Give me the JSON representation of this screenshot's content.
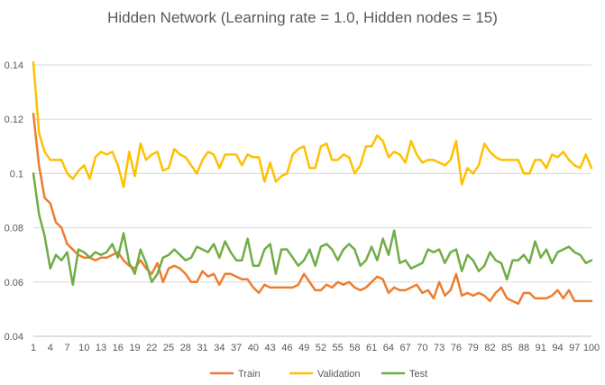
{
  "chart_data": {
    "type": "line",
    "title": "Hidden Network (Learning rate = 1.0, Hidden nodes = 15)",
    "xlabel": "",
    "ylabel": "",
    "ylim": [
      0.04,
      0.14
    ],
    "yticks": [
      "0.04",
      "0.06",
      "0.08",
      "0.1",
      "0.12",
      "0.14"
    ],
    "xtick_labels": [
      "1",
      "4",
      "7",
      "10",
      "13",
      "16",
      "19",
      "22",
      "25",
      "28",
      "31",
      "34",
      "37",
      "40",
      "43",
      "46",
      "49",
      "52",
      "55",
      "58",
      "61",
      "64",
      "67",
      "70",
      "73",
      "76",
      "79",
      "82",
      "85",
      "88",
      "91",
      "94",
      "97",
      "100"
    ],
    "x_start": 1,
    "x_end": 100,
    "grid": "horizontal",
    "legend_position": "bottom",
    "series": [
      {
        "name": "Train",
        "color": "#ED7D31",
        "values": [
          0.122,
          0.103,
          0.091,
          0.089,
          0.082,
          0.08,
          0.074,
          0.072,
          0.07,
          0.069,
          0.069,
          0.068,
          0.069,
          0.069,
          0.07,
          0.071,
          0.068,
          0.066,
          0.065,
          0.068,
          0.065,
          0.063,
          0.067,
          0.06,
          0.065,
          0.066,
          0.065,
          0.063,
          0.06,
          0.06,
          0.064,
          0.062,
          0.063,
          0.059,
          0.063,
          0.063,
          0.062,
          0.061,
          0.061,
          0.058,
          0.056,
          0.059,
          0.058,
          0.058,
          0.058,
          0.058,
          0.058,
          0.059,
          0.063,
          0.06,
          0.057,
          0.057,
          0.059,
          0.058,
          0.06,
          0.059,
          0.06,
          0.058,
          0.057,
          0.058,
          0.06,
          0.062,
          0.061,
          0.056,
          0.058,
          0.057,
          0.057,
          0.058,
          0.059,
          0.056,
          0.057,
          0.054,
          0.06,
          0.055,
          0.057,
          0.063,
          0.055,
          0.056,
          0.055,
          0.056,
          0.055,
          0.053,
          0.056,
          0.058,
          0.054,
          0.053,
          0.052,
          0.056,
          0.056,
          0.054,
          0.054,
          0.054,
          0.055,
          0.057,
          0.054,
          0.057,
          0.053,
          0.053,
          0.053,
          0.053
        ]
      },
      {
        "name": "Validation",
        "color": "#FFC000",
        "values": [
          0.141,
          0.115,
          0.108,
          0.105,
          0.105,
          0.105,
          0.1,
          0.098,
          0.101,
          0.103,
          0.098,
          0.106,
          0.108,
          0.107,
          0.108,
          0.103,
          0.095,
          0.108,
          0.099,
          0.111,
          0.105,
          0.107,
          0.108,
          0.101,
          0.102,
          0.109,
          0.107,
          0.106,
          0.103,
          0.1,
          0.105,
          0.108,
          0.107,
          0.102,
          0.107,
          0.107,
          0.107,
          0.103,
          0.107,
          0.106,
          0.106,
          0.097,
          0.104,
          0.097,
          0.099,
          0.1,
          0.107,
          0.109,
          0.11,
          0.102,
          0.102,
          0.11,
          0.111,
          0.105,
          0.105,
          0.107,
          0.106,
          0.1,
          0.103,
          0.11,
          0.11,
          0.114,
          0.112,
          0.106,
          0.108,
          0.107,
          0.104,
          0.112,
          0.107,
          0.104,
          0.105,
          0.105,
          0.104,
          0.103,
          0.105,
          0.112,
          0.096,
          0.102,
          0.1,
          0.103,
          0.111,
          0.108,
          0.106,
          0.105,
          0.105,
          0.105,
          0.105,
          0.1,
          0.1,
          0.105,
          0.105,
          0.102,
          0.107,
          0.106,
          0.108,
          0.105,
          0.103,
          0.102,
          0.107,
          0.102
        ]
      },
      {
        "name": "Test",
        "color": "#70AD47",
        "values": [
          0.1,
          0.085,
          0.077,
          0.065,
          0.07,
          0.068,
          0.071,
          0.059,
          0.072,
          0.071,
          0.069,
          0.071,
          0.07,
          0.071,
          0.074,
          0.069,
          0.078,
          0.067,
          0.063,
          0.072,
          0.067,
          0.06,
          0.063,
          0.069,
          0.07,
          0.072,
          0.07,
          0.068,
          0.069,
          0.073,
          0.072,
          0.071,
          0.074,
          0.069,
          0.075,
          0.071,
          0.068,
          0.068,
          0.076,
          0.066,
          0.066,
          0.072,
          0.074,
          0.063,
          0.072,
          0.072,
          0.069,
          0.066,
          0.068,
          0.072,
          0.066,
          0.073,
          0.074,
          0.072,
          0.068,
          0.072,
          0.074,
          0.072,
          0.066,
          0.068,
          0.073,
          0.068,
          0.076,
          0.07,
          0.079,
          0.067,
          0.068,
          0.065,
          0.066,
          0.067,
          0.072,
          0.071,
          0.072,
          0.067,
          0.071,
          0.072,
          0.064,
          0.07,
          0.068,
          0.064,
          0.066,
          0.071,
          0.068,
          0.067,
          0.061,
          0.068,
          0.068,
          0.07,
          0.067,
          0.075,
          0.069,
          0.072,
          0.067,
          0.071,
          0.072,
          0.073,
          0.071,
          0.07,
          0.067,
          0.068
        ]
      }
    ]
  }
}
